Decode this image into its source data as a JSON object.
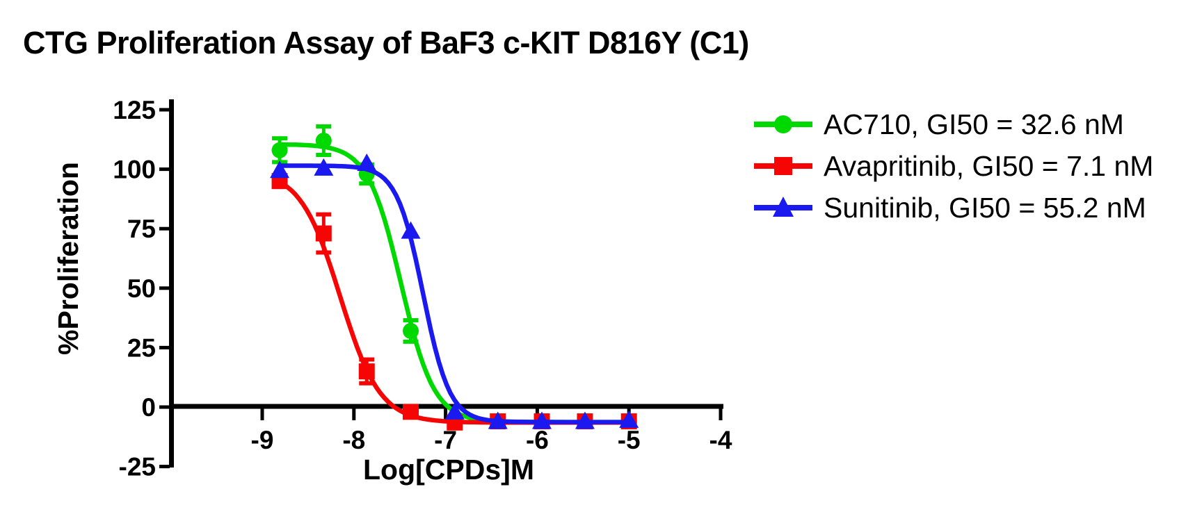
{
  "chart_data": {
    "type": "scatter-line",
    "title": "CTG Proliferation Assay of BaF3 c-KIT D816Y (C1)",
    "xlabel": "Log[CPDs]M",
    "ylabel": "%Proliferation",
    "x_ticks": [
      -9,
      -8,
      -7,
      -6,
      -5,
      -4
    ],
    "y_ticks": [
      125,
      100,
      75,
      50,
      25,
      0,
      -25
    ],
    "xlim": [
      -10,
      -3.97
    ],
    "ylim": [
      -25,
      129
    ],
    "grid": false,
    "legend_position": "right-top",
    "axis_color": "#000000",
    "x": [
      -8.81,
      -8.33,
      -7.86,
      -7.38,
      -6.9,
      -6.43,
      -5.95,
      -5.48,
      -5.0
    ],
    "series": [
      {
        "name": "AC710",
        "label": "AC710, GI50 = 32.6 nM",
        "gi50_nM": 32.6,
        "color": "#00d900",
        "marker": "circle",
        "y": [
          108,
          112,
          98,
          32,
          -5,
          -6,
          -6,
          -6,
          -6
        ],
        "err": [
          5,
          6,
          4,
          4.5,
          0,
          0,
          0,
          0,
          0
        ],
        "fit": {
          "top": 110.5,
          "bottom": -6.3,
          "logec50": -7.487,
          "hill": 2.4
        }
      },
      {
        "name": "Avapritinib",
        "label": "Avapritinib, GI50 = 7.1 nM",
        "gi50_nM": 7.1,
        "color": "#f60505",
        "marker": "square",
        "y": [
          95,
          73,
          15,
          -2,
          -6.5,
          -6,
          -6,
          -6,
          -6
        ],
        "err": [
          2,
          8,
          5,
          0,
          0,
          0,
          0,
          0,
          0
        ],
        "fit": {
          "top": 99.5,
          "bottom": -6.5,
          "logec50": -8.15,
          "hill": 2.0
        }
      },
      {
        "name": "Sunitinib",
        "label": "Sunitinib, GI50 = 55.2 nM",
        "gi50_nM": 55.2,
        "color": "#1a1af0",
        "marker": "triangle",
        "y": [
          99.5,
          100.5,
          102.5,
          74,
          -2,
          -6,
          -6,
          -6,
          -5.5
        ],
        "err": [
          0,
          0,
          0,
          0,
          0,
          0,
          0,
          0,
          0
        ],
        "fit": {
          "top": 101.5,
          "bottom": -6.3,
          "logec50": -7.245,
          "hill": 3.0
        }
      }
    ]
  }
}
